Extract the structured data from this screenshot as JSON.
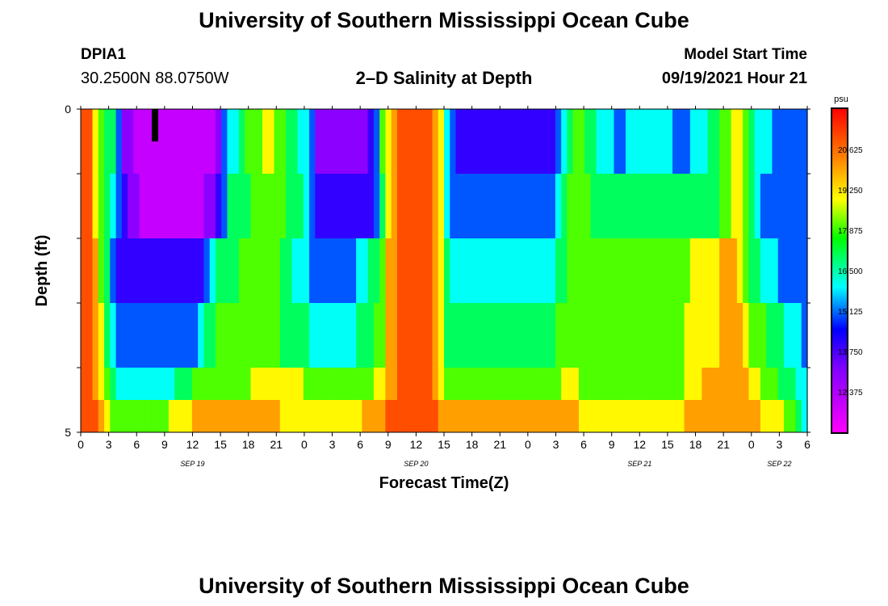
{
  "header": {
    "title": "University of Southern Mississippi Ocean Cube",
    "footer_title": "University of Southern Mississippi Ocean Cube",
    "station_id": "DPIA1",
    "coordinates": "30.2500N  88.0750W",
    "subtitle": "2–D Salinity at Depth",
    "model_start_label": "Model Start Time",
    "model_start_value": "09/19/2021 Hour 21"
  },
  "chart_data": {
    "type": "heatmap",
    "xlabel": "Forecast Time(Z)",
    "ylabel": "Depth (ft)",
    "units": "psu",
    "x_hours": [
      0,
      3,
      6,
      9,
      12,
      15,
      18,
      21,
      24,
      27,
      30,
      33,
      36,
      39,
      42,
      45,
      48,
      51,
      54,
      57,
      60,
      63,
      66,
      69,
      72,
      75,
      78
    ],
    "x_tick_labels": [
      "0",
      "3",
      "6",
      "9",
      "12",
      "15",
      "18",
      "21",
      "0",
      "3",
      "6",
      "9",
      "12",
      "15",
      "18",
      "21",
      "0",
      "3",
      "6",
      "9",
      "12",
      "15",
      "18",
      "21",
      "0",
      "3",
      "6"
    ],
    "date_labels": [
      {
        "text": "SEP 19",
        "hour": 12
      },
      {
        "text": "SEP 20",
        "hour": 36
      },
      {
        "text": "SEP 21",
        "hour": 60
      },
      {
        "text": "SEP 22",
        "hour": 75
      }
    ],
    "xlim": [
      0,
      78
    ],
    "y_tick_labels": [
      "0",
      "5"
    ],
    "ylim": [
      0,
      5
    ],
    "colorbar": {
      "ticks": [
        20.625,
        19.25,
        17.875,
        16.5,
        15.125,
        13.75,
        12.375
      ],
      "range": [
        11.0,
        22.0
      ]
    },
    "depth_layers": 5,
    "time_step_hours": 1,
    "salinity": [
      [
        21,
        21,
        19,
        18,
        17,
        17,
        15,
        13,
        13,
        12,
        12,
        12,
        12,
        12,
        12,
        12,
        12,
        12,
        12,
        12,
        12,
        12,
        12,
        13,
        15,
        16,
        16,
        17,
        18,
        18,
        18,
        19,
        19,
        18,
        18,
        17,
        17,
        16,
        16,
        15,
        13,
        13,
        13,
        13,
        13,
        13,
        13,
        13,
        13,
        14,
        15,
        18,
        19,
        20,
        21,
        21,
        21,
        21,
        21,
        21,
        20,
        19,
        16,
        15,
        14,
        14,
        14,
        14,
        14,
        14,
        14,
        14,
        14,
        14,
        14,
        14,
        14,
        14,
        14,
        14,
        14,
        15,
        16,
        17,
        18,
        18,
        17,
        17,
        16,
        16,
        16,
        15,
        15,
        16,
        16,
        16,
        16,
        16,
        16,
        16,
        16,
        15,
        15,
        15,
        16,
        16,
        16,
        17,
        17,
        18,
        18,
        19,
        19,
        18,
        17,
        16,
        16,
        16,
        15,
        15,
        15,
        15,
        15,
        15
      ],
      [
        21,
        21,
        19,
        18,
        17,
        16,
        15,
        14,
        13,
        13,
        12,
        12,
        12,
        12,
        12,
        12,
        12,
        12,
        12,
        12,
        12,
        13,
        13,
        14,
        15,
        17,
        17,
        17,
        17,
        18,
        18,
        18,
        18,
        18,
        18,
        17,
        17,
        17,
        16,
        15,
        14,
        14,
        14,
        14,
        14,
        14,
        14,
        14,
        14,
        14,
        15,
        17,
        19,
        20,
        21,
        21,
        21,
        21,
        21,
        21,
        20,
        19,
        16,
        15,
        15,
        15,
        15,
        15,
        15,
        15,
        15,
        15,
        15,
        15,
        15,
        15,
        15,
        15,
        15,
        15,
        15,
        16,
        17,
        18,
        18,
        18,
        18,
        17,
        17,
        17,
        17,
        17,
        17,
        17,
        17,
        17,
        17,
        17,
        17,
        17,
        17,
        17,
        17,
        17,
        17,
        17,
        17,
        17,
        17,
        18,
        18,
        19,
        19,
        18,
        17,
        16,
        15,
        15,
        15,
        15,
        15,
        15,
        15,
        15
      ],
      [
        21,
        21,
        20,
        18,
        17,
        15,
        14,
        14,
        14,
        14,
        14,
        14,
        14,
        14,
        14,
        14,
        14,
        14,
        14,
        14,
        14,
        15,
        16,
        17,
        17,
        17,
        17,
        18,
        18,
        18,
        18,
        18,
        18,
        18,
        17,
        17,
        16,
        16,
        16,
        15,
        15,
        15,
        15,
        15,
        15,
        15,
        15,
        16,
        16,
        17,
        17,
        18,
        20,
        20,
        21,
        21,
        21,
        21,
        21,
        21,
        20,
        19,
        17,
        16,
        16,
        16,
        16,
        16,
        16,
        16,
        16,
        16,
        16,
        16,
        16,
        16,
        16,
        16,
        16,
        16,
        16,
        17,
        17,
        18,
        18,
        18,
        18,
        18,
        18,
        18,
        18,
        18,
        18,
        18,
        18,
        18,
        18,
        18,
        18,
        18,
        18,
        18,
        18,
        18,
        19,
        19,
        19,
        19,
        19,
        20,
        20,
        20,
        19,
        18,
        17,
        17,
        16,
        16,
        16,
        15,
        15,
        15,
        15,
        15
      ],
      [
        21,
        21,
        20,
        19,
        17,
        16,
        15,
        15,
        15,
        15,
        15,
        15,
        15,
        15,
        15,
        15,
        15,
        15,
        15,
        15,
        16,
        17,
        17,
        18,
        18,
        18,
        18,
        18,
        18,
        18,
        18,
        18,
        18,
        18,
        17,
        17,
        17,
        17,
        17,
        16,
        16,
        16,
        16,
        16,
        16,
        16,
        16,
        17,
        17,
        17,
        18,
        18,
        20,
        20,
        21,
        21,
        21,
        21,
        21,
        21,
        20,
        19,
        17,
        17,
        17,
        17,
        17,
        17,
        17,
        17,
        17,
        17,
        17,
        17,
        17,
        17,
        17,
        17,
        17,
        17,
        17,
        18,
        18,
        18,
        18,
        18,
        18,
        18,
        18,
        18,
        18,
        18,
        18,
        18,
        18,
        18,
        18,
        18,
        18,
        18,
        18,
        18,
        18,
        19,
        19,
        19,
        19,
        19,
        19,
        20,
        20,
        20,
        20,
        19,
        18,
        18,
        18,
        17,
        17,
        17,
        16,
        16,
        16,
        15
      ],
      [
        21,
        21,
        20,
        19,
        18,
        17,
        16,
        16,
        16,
        16,
        16,
        16,
        16,
        16,
        16,
        16,
        17,
        17,
        17,
        18,
        18,
        18,
        18,
        18,
        18,
        18,
        18,
        18,
        18,
        19,
        19,
        19,
        19,
        19,
        19,
        19,
        19,
        19,
        18,
        18,
        18,
        18,
        18,
        18,
        18,
        18,
        18,
        18,
        18,
        18,
        19,
        19,
        20,
        20,
        21,
        21,
        21,
        21,
        21,
        21,
        20,
        19,
        18,
        18,
        18,
        18,
        18,
        18,
        18,
        18,
        18,
        18,
        18,
        18,
        18,
        18,
        18,
        18,
        18,
        18,
        18,
        18,
        19,
        19,
        19,
        18,
        18,
        18,
        18,
        18,
        18,
        18,
        18,
        18,
        18,
        18,
        18,
        18,
        18,
        18,
        18,
        18,
        18,
        19,
        19,
        19,
        20,
        20,
        20,
        20,
        20,
        20,
        20,
        20,
        19,
        19,
        18,
        18,
        18,
        17,
        17,
        17,
        16,
        16
      ],
      [
        21,
        21,
        21,
        20,
        19,
        18,
        18,
        18,
        18,
        18,
        18,
        18,
        18,
        18,
        18,
        19,
        19,
        19,
        19,
        20,
        20,
        20,
        20,
        20,
        20,
        20,
        20,
        20,
        20,
        20,
        20,
        20,
        20,
        20,
        19,
        19,
        19,
        19,
        19,
        19,
        19,
        19,
        19,
        19,
        19,
        19,
        19,
        19,
        20,
        20,
        20,
        20,
        21,
        21,
        21,
        21,
        21,
        21,
        21,
        21,
        21,
        20,
        20,
        20,
        20,
        20,
        20,
        20,
        20,
        20,
        20,
        20,
        20,
        20,
        20,
        20,
        20,
        20,
        20,
        20,
        20,
        20,
        20,
        20,
        20,
        19,
        19,
        19,
        19,
        19,
        19,
        19,
        19,
        19,
        19,
        19,
        19,
        19,
        19,
        19,
        19,
        19,
        19,
        20,
        20,
        20,
        20,
        20,
        20,
        20,
        20,
        20,
        20,
        20,
        20,
        20,
        19,
        19,
        19,
        19,
        18,
        18,
        17,
        16
      ]
    ]
  }
}
